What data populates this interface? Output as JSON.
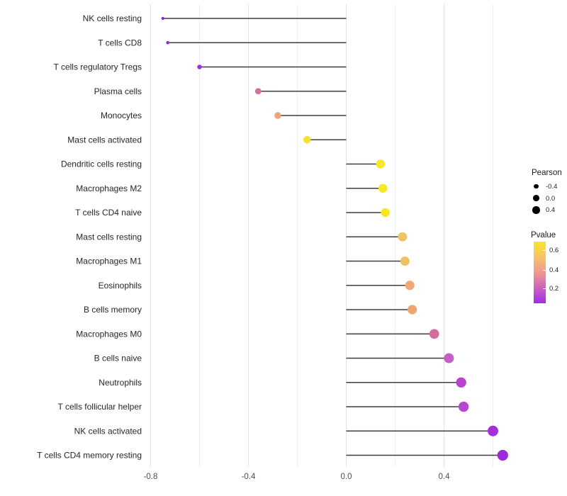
{
  "chart_data": {
    "type": "lollipop",
    "title": "",
    "xlabel": "",
    "ylabel": "",
    "xlim": [
      -0.82,
      0.72
    ],
    "grid": "on",
    "x_major_ticks": [
      -0.8,
      -0.4,
      0.0,
      0.4
    ],
    "x_major_labels": [
      "-0.8",
      "-0.4",
      "0.0",
      "0.4"
    ],
    "x_minor_ticks": [
      -0.6,
      -0.2,
      0.2,
      0.6
    ],
    "categories": [
      "NK cells resting",
      "T cells CD8",
      "T cells regulatory  Tregs",
      "Plasma cells",
      "Monocytes",
      "Mast cells activated",
      "Dendritic cells resting",
      "Macrophages M2",
      "T cells CD4 naive",
      "Mast cells resting",
      "Macrophages M1",
      "Eosinophils",
      "B cells memory",
      "Macrophages M0",
      "B cells naive",
      "Neutrophils",
      "T cells follicular helper",
      "NK cells activated",
      "T cells CD4 memory resting"
    ],
    "series": [
      {
        "name": "Pearson",
        "values": [
          -0.75,
          -0.73,
          -0.6,
          -0.36,
          -0.28,
          -0.16,
          0.14,
          0.15,
          0.16,
          0.23,
          0.24,
          0.26,
          0.27,
          0.36,
          0.42,
          0.47,
          0.48,
          0.6,
          0.64
        ]
      }
    ],
    "point_colors": [
      "#8f23e0",
      "#9226e0",
      "#9c2ce2",
      "#d3709f",
      "#efa573",
      "#f3e32b",
      "#f8e821",
      "#f8e821",
      "#f8e624",
      "#f0c466",
      "#f0c164",
      "#f0a875",
      "#eda573",
      "#d26d9e",
      "#c75fc6",
      "#b843d1",
      "#b846d1",
      "#a530da",
      "#9c2ad8"
    ],
    "stem_color": "#3f3f3f",
    "gridline_major_color": "#e2e2e2",
    "gridline_minor_color": "#efefef",
    "axis_text_color": "#4d4d4d",
    "category_text_color": "#262626",
    "legend": {
      "size": {
        "title": "Pearson",
        "entries": [
          {
            "label": "-0.4"
          },
          {
            "label": "0.0"
          },
          {
            "label": "0.4"
          }
        ]
      },
      "color": {
        "title": "Pvalue",
        "ticks": [
          {
            "label": "0.6"
          },
          {
            "label": "0.4"
          },
          {
            "label": "0.2"
          }
        ],
        "gradient": [
          "#f9e723",
          "#f6c16c",
          "#ee9a8b",
          "#cf63bd",
          "#a22ce8"
        ]
      }
    }
  }
}
